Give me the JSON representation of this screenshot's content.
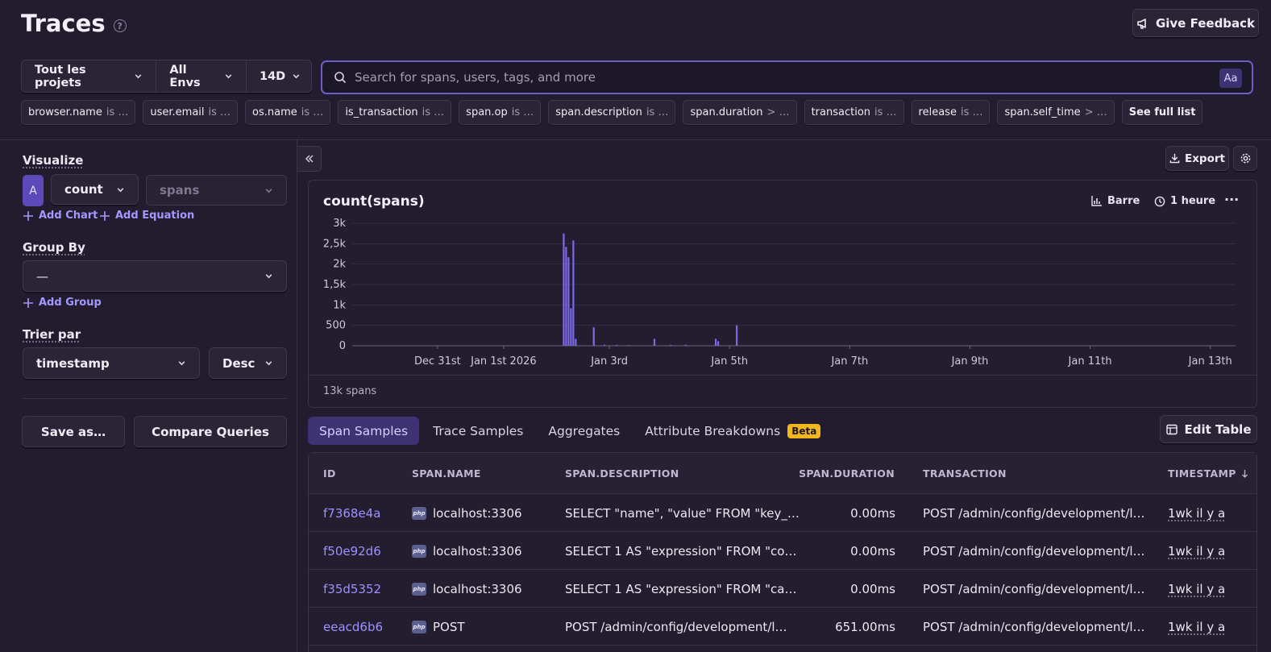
{
  "header": {
    "title": "Traces",
    "feedback_label": "Give Feedback"
  },
  "filters": {
    "project": "Tout les projets",
    "env": "All Envs",
    "period": "14D"
  },
  "search": {
    "placeholder": "Search for spans, users, tags, and more",
    "case_toggle": "Aa"
  },
  "chips": [
    {
      "key": "browser.name",
      "op": "is …"
    },
    {
      "key": "user.email",
      "op": "is …"
    },
    {
      "key": "os.name",
      "op": "is …"
    },
    {
      "key": "is_transaction",
      "op": "is …"
    },
    {
      "key": "span.op",
      "op": "is …"
    },
    {
      "key": "span.description",
      "op": "is …"
    },
    {
      "key": "span.duration",
      "op": "> …"
    },
    {
      "key": "transaction",
      "op": "is …"
    },
    {
      "key": "release",
      "op": "is …"
    },
    {
      "key": "span.self_time",
      "op": "> …"
    }
  ],
  "see_full_list": "See full list",
  "left": {
    "visualize_label": "Visualize",
    "vis_letter": "A",
    "aggregate": "count",
    "field": "spans",
    "add_chart": "Add Chart",
    "add_equation": "Add Equation",
    "group_by_label": "Group By",
    "group_by_value": "—",
    "add_group": "Add Group",
    "sort_label": "Trier par",
    "sort_field": "timestamp",
    "sort_dir": "Desc",
    "save_as": "Save as…",
    "compare": "Compare Queries"
  },
  "toolbar": {
    "export": "Export"
  },
  "chart": {
    "title": "count(spans)",
    "type_label": "Barre",
    "interval_label": "1 heure",
    "footer": "13k spans",
    "accent": "#7c6ae8"
  },
  "chart_data": {
    "type": "bar",
    "title": "count(spans)",
    "yticks": [
      "0",
      "500",
      "1k",
      "1,5k",
      "2k",
      "2,5k",
      "3k"
    ],
    "ylim": [
      0,
      3000
    ],
    "xticks": [
      "Dec 31st",
      "Jan 1st 2026",
      "Jan 3rd",
      "Jan 5th",
      "Jan 7th",
      "Jan 9th",
      "Jan 11th",
      "Jan 13th"
    ],
    "x_unit": "days since Dec 30",
    "xlim": [
      0,
      14.7
    ],
    "series": [
      {
        "values": [
          {
            "x": 3.52,
            "y": 2750
          },
          {
            "x": 3.56,
            "y": 2420
          },
          {
            "x": 3.6,
            "y": 2170
          },
          {
            "x": 3.64,
            "y": 920
          },
          {
            "x": 3.68,
            "y": 2580
          },
          {
            "x": 3.72,
            "y": 170
          },
          {
            "x": 4.02,
            "y": 450
          },
          {
            "x": 4.2,
            "y": 25
          },
          {
            "x": 4.4,
            "y": 20
          },
          {
            "x": 4.6,
            "y": 15
          },
          {
            "x": 5.03,
            "y": 170
          },
          {
            "x": 5.3,
            "y": 20
          },
          {
            "x": 5.55,
            "y": 25
          },
          {
            "x": 6.05,
            "y": 170
          },
          {
            "x": 6.09,
            "y": 110
          },
          {
            "x": 6.4,
            "y": 500
          }
        ]
      }
    ]
  },
  "tabs": [
    {
      "label": "Span Samples"
    },
    {
      "label": "Trace Samples"
    },
    {
      "label": "Aggregates"
    },
    {
      "label": "Attribute Breakdowns",
      "badge": "Beta"
    }
  ],
  "edit_table": "Edit Table",
  "table": {
    "columns": [
      "ID",
      "SPAN.NAME",
      "SPAN.DESCRIPTION",
      "SPAN.DURATION",
      "TRANSACTION",
      "TIMESTAMP"
    ],
    "rows": [
      {
        "id": "f7368e4a",
        "name": "localhost:3306",
        "desc": "SELECT \"name\", \"value\" FROM \"key_…",
        "duration": "0.00ms",
        "transaction": "POST /admin/config/development/l…",
        "ts": "1wk il y a"
      },
      {
        "id": "f50e92d6",
        "name": "localhost:3306",
        "desc": "SELECT 1 AS \"expression\" FROM \"co…",
        "duration": "0.00ms",
        "transaction": "POST /admin/config/development/l…",
        "ts": "1wk il y a"
      },
      {
        "id": "f35d5352",
        "name": "localhost:3306",
        "desc": "SELECT 1 AS \"expression\" FROM \"ca…",
        "duration": "0.00ms",
        "transaction": "POST /admin/config/development/l…",
        "ts": "1wk il y a"
      },
      {
        "id": "eeacd6b6",
        "name": "POST",
        "desc": "POST /admin/config/development/l…",
        "duration": "651.00ms",
        "transaction": "POST /admin/config/development/l…",
        "ts": "1wk il y a"
      }
    ]
  }
}
